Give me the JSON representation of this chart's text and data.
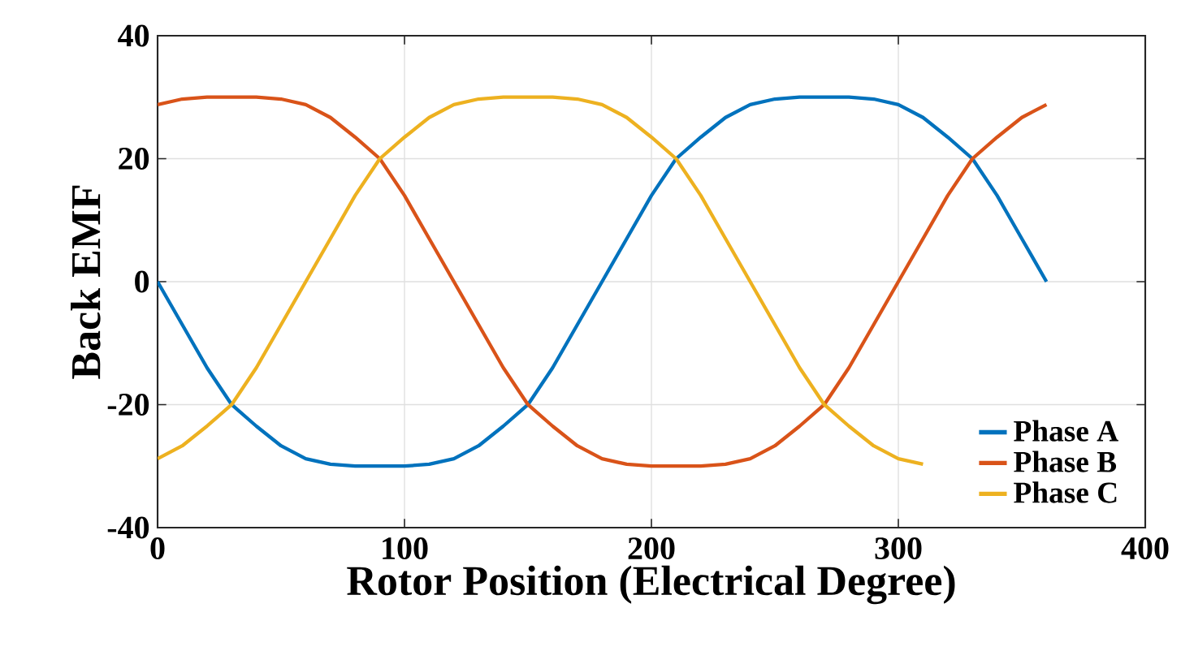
{
  "chart_data": {
    "type": "line",
    "xlabel": "Rotor Position (Electrical Degree)",
    "ylabel": "Back EMF",
    "x": [
      0,
      10,
      20,
      30,
      40,
      50,
      60,
      70,
      80,
      90,
      100,
      110,
      120,
      130,
      140,
      150,
      160,
      170,
      180,
      190,
      200,
      210,
      220,
      230,
      240,
      250,
      260,
      270,
      280,
      290,
      300,
      310,
      320,
      330,
      340,
      350,
      360
    ],
    "series": [
      {
        "name": "Phase A",
        "color": "#0072bd",
        "values": [
          0,
          -7,
          -14,
          -20,
          -23.5,
          -26.7,
          -28.8,
          -29.7,
          -30,
          -30,
          -30,
          -29.7,
          -28.8,
          -26.7,
          -23.5,
          -20,
          -14,
          -7,
          0,
          7,
          14,
          20,
          23.5,
          26.7,
          28.8,
          29.7,
          30,
          30,
          30,
          29.7,
          28.8,
          26.7,
          23.5,
          20,
          14,
          7,
          0
        ]
      },
      {
        "name": "Phase B",
        "color": "#d95319",
        "values": [
          28.8,
          29.7,
          30,
          30,
          30,
          29.7,
          28.8,
          26.7,
          23.5,
          20,
          14,
          7,
          0,
          -7,
          -14,
          -20,
          -23.5,
          -26.7,
          -28.8,
          -29.7,
          -30,
          -30,
          -30,
          -29.7,
          -28.8,
          -26.7,
          -23.5,
          -20,
          -14,
          -7,
          0,
          7,
          14,
          20,
          23.5,
          26.7,
          28.8
        ]
      },
      {
        "name": "Phase C",
        "color": "#edb120",
        "x": [
          0,
          10,
          20,
          30,
          40,
          50,
          60,
          70,
          80,
          90,
          100,
          110,
          120,
          130,
          140,
          150,
          160,
          170,
          180,
          190,
          200,
          210,
          220,
          230,
          240,
          250,
          260,
          270,
          280,
          290,
          300,
          310
        ],
        "values": [
          -28.8,
          -26.7,
          -23.5,
          -20,
          -14,
          -7,
          0,
          7,
          14,
          20,
          23.5,
          26.7,
          28.8,
          29.7,
          30,
          30,
          30,
          29.7,
          28.8,
          26.7,
          23.5,
          20,
          14,
          7,
          0,
          -7,
          -14,
          -20,
          -23.5,
          -26.7,
          -28.8,
          -29.7
        ]
      }
    ],
    "xlim": [
      0,
      400
    ],
    "ylim": [
      -40,
      40
    ],
    "xticks": [
      0,
      100,
      200,
      300,
      400
    ],
    "yticks": [
      -40,
      -20,
      0,
      20,
      40
    ],
    "grid": true,
    "legend": "bottom right",
    "marker": "none",
    "line_style": "solid"
  }
}
